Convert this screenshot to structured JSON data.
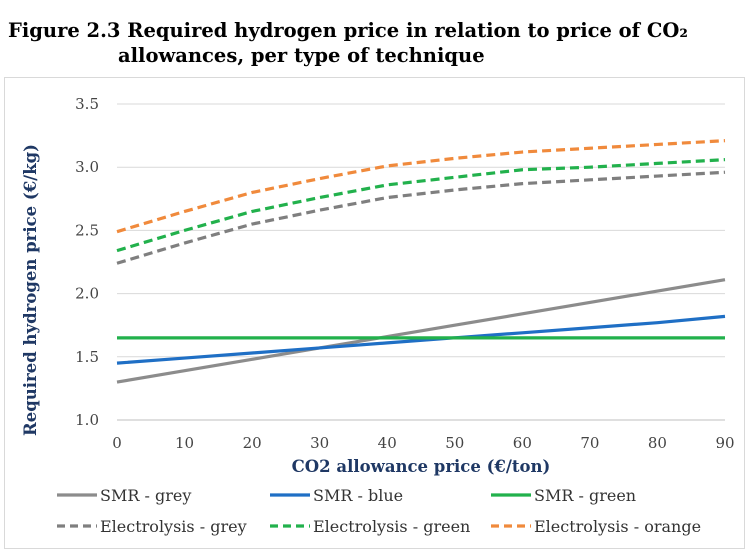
{
  "figure": {
    "title_line1": "Figure 2.3 Required hydrogen price in relation to price of CO₂",
    "title_line2": "allowances, per type of technique"
  },
  "chart_data": {
    "type": "line",
    "xlabel": "CO2 allowance price (€/ton)",
    "ylabel": "Required hydrogen price (€/kg)",
    "xlim": [
      0,
      90
    ],
    "ylim": [
      1.0,
      3.5
    ],
    "x_ticks": [
      "0",
      "10",
      "20",
      "30",
      "40",
      "50",
      "60",
      "70",
      "80",
      "90"
    ],
    "y_ticks": [
      "1.0",
      "1.5",
      "2.0",
      "2.5",
      "3.0",
      "3.5"
    ],
    "grid": "horizontal",
    "legend_position": "bottom",
    "x": [
      0,
      10,
      20,
      30,
      40,
      50,
      60,
      70,
      80,
      90
    ],
    "series": [
      {
        "name": "SMR - grey",
        "color": "#8c8c8c",
        "style": "solid",
        "values": [
          1.3,
          1.39,
          1.48,
          1.57,
          1.66,
          1.75,
          1.84,
          1.93,
          2.02,
          2.11
        ]
      },
      {
        "name": "SMR - blue",
        "color": "#1f6fc5",
        "style": "solid",
        "values": [
          1.45,
          1.49,
          1.53,
          1.57,
          1.61,
          1.65,
          1.69,
          1.73,
          1.77,
          1.82
        ]
      },
      {
        "name": "SMR - green",
        "color": "#22b14c",
        "style": "solid",
        "values": [
          1.65,
          1.65,
          1.65,
          1.65,
          1.65,
          1.65,
          1.65,
          1.65,
          1.65,
          1.65
        ]
      },
      {
        "name": "Electrolysis - grey",
        "color": "#7f7f7f",
        "style": "dashed",
        "values": [
          2.24,
          2.4,
          2.55,
          2.66,
          2.76,
          2.82,
          2.87,
          2.9,
          2.93,
          2.96
        ]
      },
      {
        "name": "Electrolysis - green",
        "color": "#22b14c",
        "style": "dashed",
        "values": [
          2.34,
          2.5,
          2.65,
          2.76,
          2.86,
          2.92,
          2.98,
          3.0,
          3.03,
          3.06
        ]
      },
      {
        "name": "Electrolysis - orange",
        "color": "#f08a3c",
        "style": "dashed",
        "values": [
          2.49,
          2.65,
          2.8,
          2.91,
          3.01,
          3.07,
          3.12,
          3.15,
          3.18,
          3.21
        ]
      }
    ]
  }
}
